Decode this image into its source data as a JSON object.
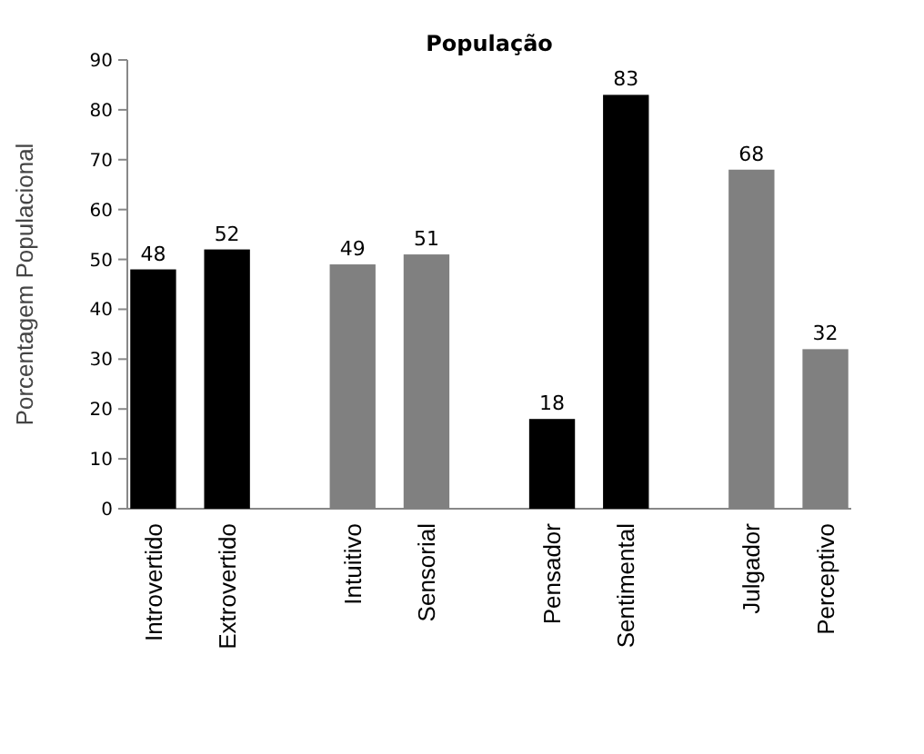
{
  "chart_data": {
    "type": "bar",
    "title": "População",
    "ylabel": "Porcentagem Populacional",
    "categories": [
      "Introvertido",
      "Extrovertido",
      "Intuitivo",
      "Sensorial",
      "Pensador",
      "Sentimental",
      "Julgador",
      "Perceptivo"
    ],
    "values": [
      48,
      52,
      49,
      51,
      18,
      83,
      68,
      32
    ],
    "colors": [
      "#000000",
      "#000000",
      "#808080",
      "#808080",
      "#000000",
      "#000000",
      "#808080",
      "#808080"
    ],
    "ylim": [
      0,
      90
    ],
    "yticks": [
      0,
      10,
      20,
      30,
      40,
      50,
      60,
      70,
      80,
      90
    ],
    "data_labels": true,
    "grid": false
  }
}
